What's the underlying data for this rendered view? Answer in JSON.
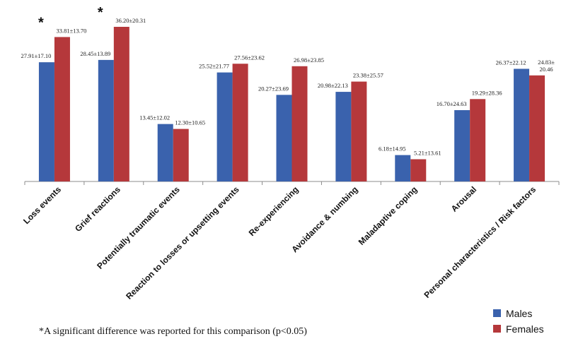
{
  "chart_data": {
    "type": "bar",
    "categories": [
      "Loss events",
      "Grief reactions",
      "Potentially traumatic events",
      "Reaction to losses or upsetting events",
      "Re-experiencing",
      "Avoidance & numbing",
      "Maladaptive coping",
      "Arousal",
      "Personal characteristics / Risk factors"
    ],
    "series": [
      {
        "name": "Males",
        "color": "#3a62ad",
        "values": [
          27.91,
          28.45,
          13.45,
          25.52,
          20.27,
          20.98,
          6.18,
          16.7,
          26.37
        ],
        "labels": [
          "27.91±17.10",
          "28.45±13.89",
          "13.45±12.02",
          "25.52±21.77",
          "20.27±23.69",
          "20.98±22.13",
          "6.18±14.95",
          "16.70±24.63",
          "26.37±22.12"
        ]
      },
      {
        "name": "Females",
        "color": "#b5383b",
        "values": [
          33.81,
          36.2,
          12.3,
          27.56,
          26.98,
          23.38,
          5.21,
          19.29,
          24.83
        ],
        "labels": [
          "33.81±13.70",
          "36.20±20.31",
          "12.30±10.65",
          "27.56±23.62",
          "26.98±23.85",
          "23.38±25.57",
          "5.21±13.61",
          "19.29±28.36",
          "24.83±\n20.46"
        ]
      }
    ],
    "significance_marker": "*",
    "significant_categories": [
      0,
      1
    ],
    "ylim": [
      0,
      40
    ],
    "grid": false,
    "legend_position": "bottom-right",
    "footnote": "*A significant difference was reported for this comparison (p<0.05)"
  }
}
